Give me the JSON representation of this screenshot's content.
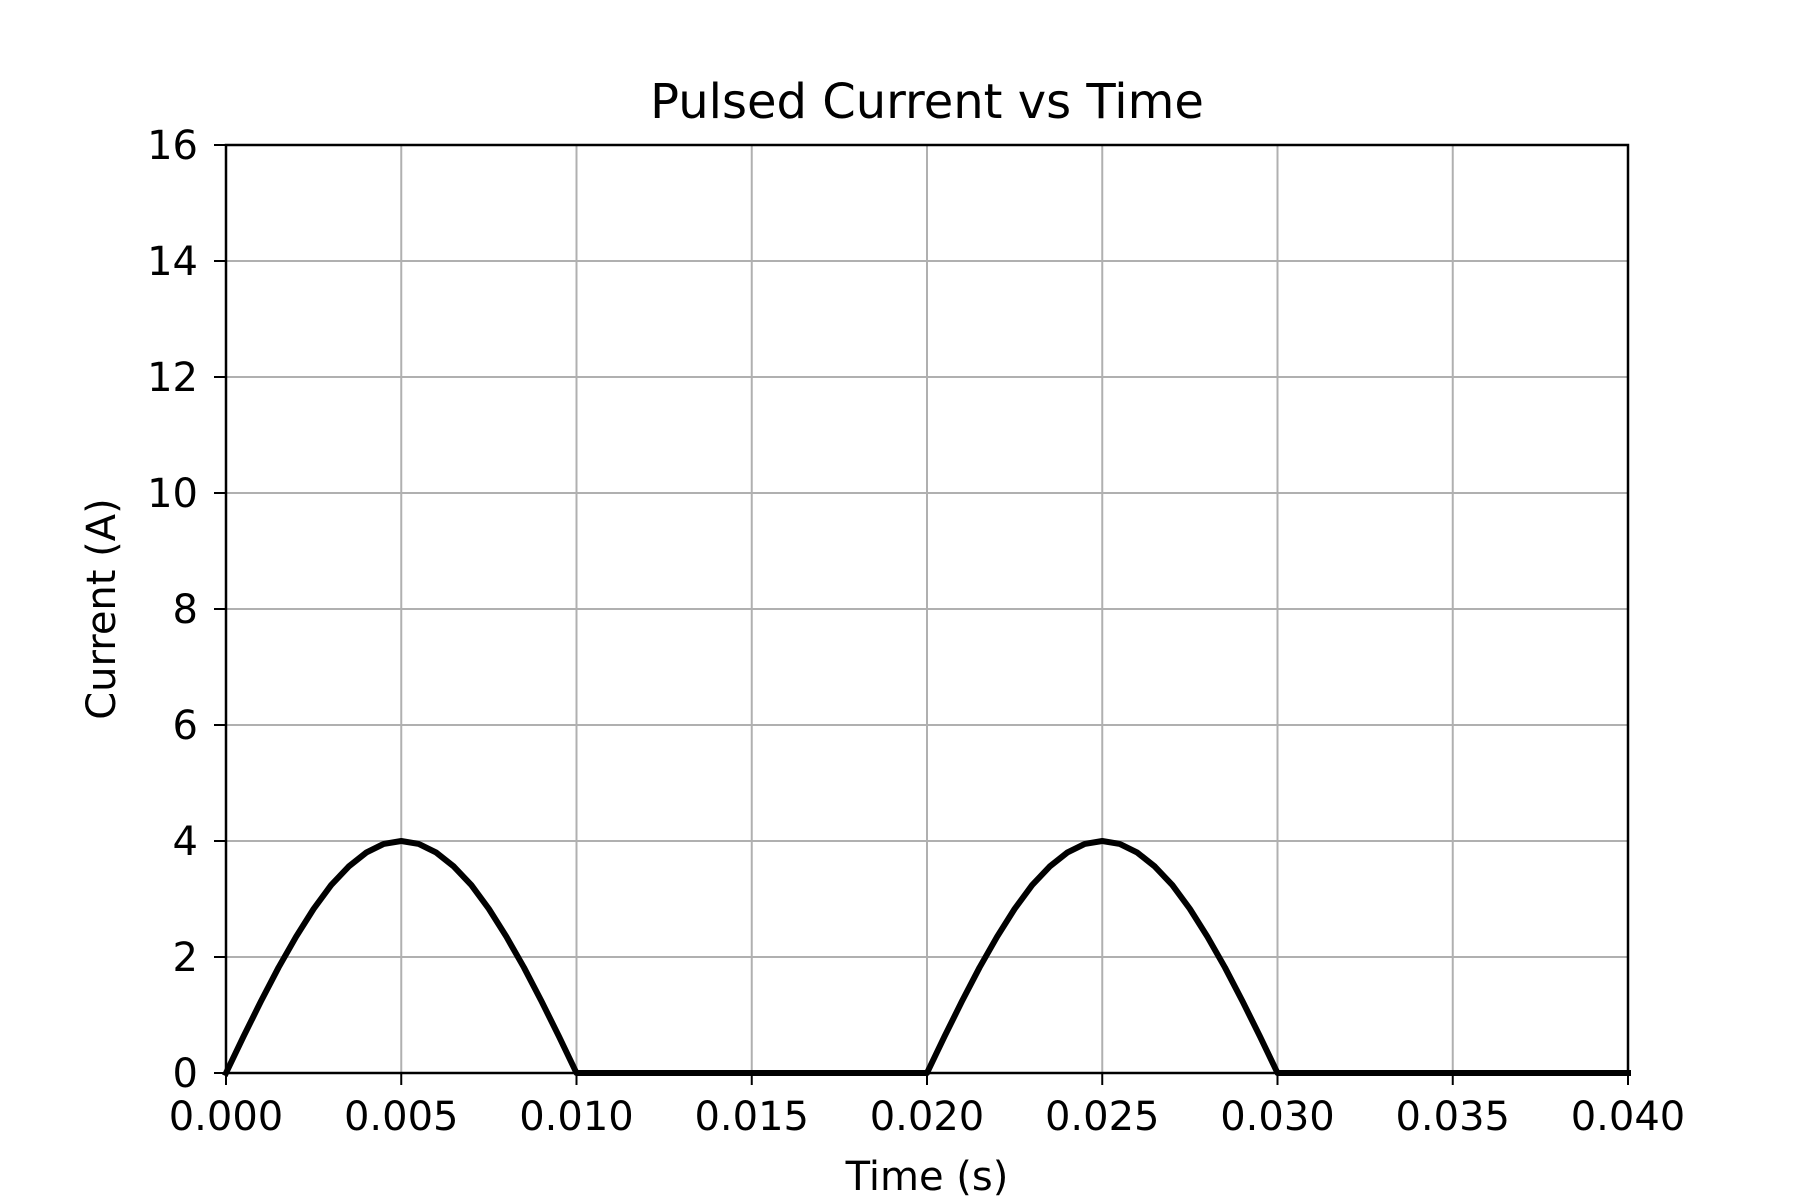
{
  "chart_data": {
    "type": "line",
    "title": "Pulsed Current vs Time",
    "xlabel": "Time (s)",
    "ylabel": "Current (A)",
    "xlim": [
      0.0,
      0.04
    ],
    "ylim": [
      0,
      16
    ],
    "grid": true,
    "x_ticks": [
      "0.000",
      "0.005",
      "0.010",
      "0.015",
      "0.020",
      "0.025",
      "0.030",
      "0.035",
      "0.040"
    ],
    "y_ticks": [
      "0",
      "2",
      "4",
      "6",
      "8",
      "10",
      "12",
      "14",
      "16"
    ],
    "series": [
      {
        "color": "#000000",
        "x": [
          0.0,
          0.0005,
          0.001,
          0.0015,
          0.002,
          0.0025,
          0.003,
          0.0035,
          0.004,
          0.0045,
          0.005,
          0.0055,
          0.006,
          0.0065,
          0.007,
          0.0075,
          0.008,
          0.0085,
          0.009,
          0.0095,
          0.01,
          0.015,
          0.02,
          0.0205,
          0.021,
          0.0215,
          0.022,
          0.0225,
          0.023,
          0.0235,
          0.024,
          0.0245,
          0.025,
          0.0255,
          0.026,
          0.0265,
          0.027,
          0.0275,
          0.028,
          0.0285,
          0.029,
          0.0295,
          0.03,
          0.035,
          0.04
        ],
        "y": [
          0.0,
          0.63,
          1.24,
          1.82,
          2.35,
          2.83,
          3.24,
          3.56,
          3.8,
          3.95,
          4.0,
          3.95,
          3.8,
          3.56,
          3.24,
          2.83,
          2.35,
          1.82,
          1.24,
          0.63,
          0.0,
          0.0,
          0.0,
          0.63,
          1.24,
          1.82,
          2.35,
          2.83,
          3.24,
          3.56,
          3.8,
          3.95,
          4.0,
          3.95,
          3.8,
          3.56,
          3.24,
          2.83,
          2.35,
          1.82,
          1.24,
          0.63,
          0.0,
          0.0,
          0.0
        ]
      }
    ]
  }
}
